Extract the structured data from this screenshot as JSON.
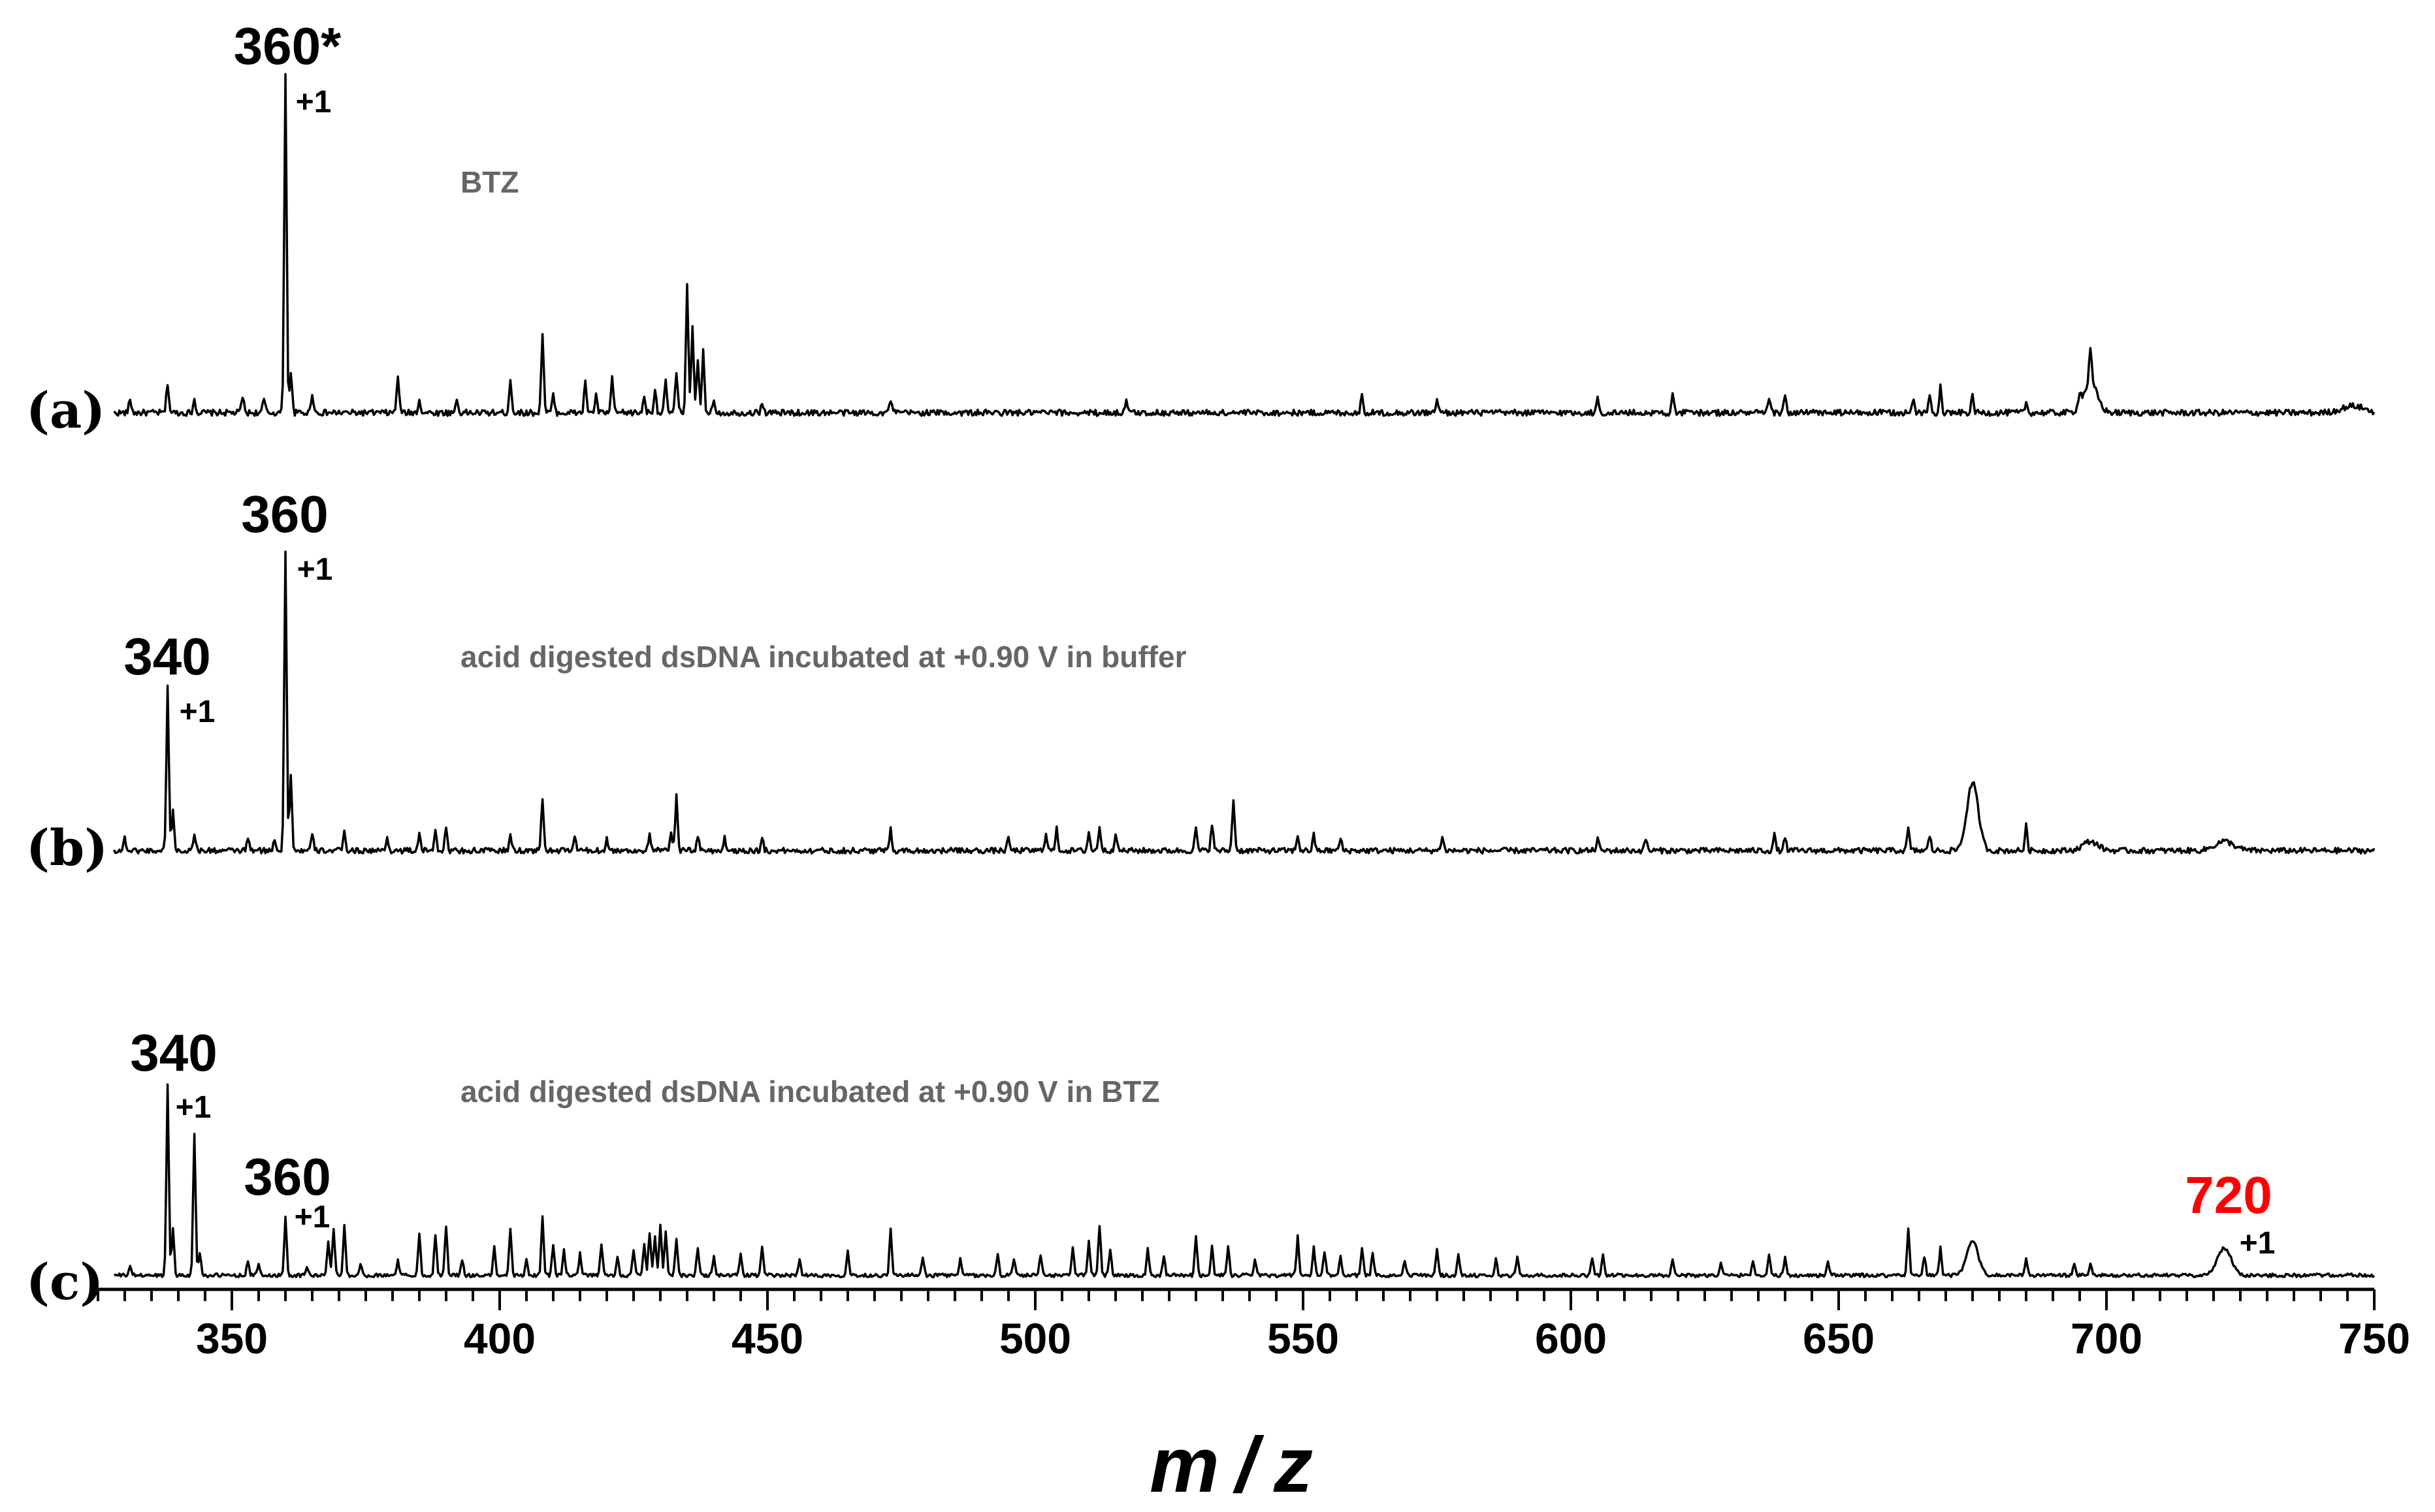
{
  "chart_data": {
    "type": "line",
    "x_axis": {
      "label_m": "m",
      "label_sep": "/",
      "label_z": "z",
      "xlim": [
        325,
        750
      ],
      "major_ticks": [
        350,
        400,
        450,
        500,
        550,
        600,
        650,
        700,
        750
      ],
      "tick_labels": [
        "350",
        "400",
        "450",
        "500",
        "550",
        "600",
        "650",
        "700",
        "750"
      ],
      "minor_tick_step": 5
    },
    "panels": [
      {
        "label": "(a)",
        "caption": "BTZ",
        "peaks": [
          [
            331,
            0.04
          ],
          [
            338,
            0.09
          ],
          [
            343,
            0.04
          ],
          [
            352,
            0.05
          ],
          [
            356,
            0.04
          ],
          [
            360,
            1.0
          ],
          [
            361,
            0.12
          ],
          [
            365,
            0.06
          ],
          [
            381,
            0.11
          ],
          [
            385,
            0.04
          ],
          [
            392,
            0.04
          ],
          [
            402,
            0.1
          ],
          [
            408,
            0.24
          ],
          [
            410,
            0.05
          ],
          [
            416,
            0.09
          ],
          [
            418,
            0.05
          ],
          [
            421,
            0.1
          ],
          [
            427,
            0.05
          ],
          [
            429,
            0.07
          ],
          [
            431,
            0.09
          ],
          [
            433,
            0.12
          ],
          [
            435,
            0.39
          ],
          [
            436,
            0.25
          ],
          [
            437,
            0.15
          ],
          [
            438,
            0.18
          ],
          [
            440,
            0.04
          ],
          [
            449,
            0.03
          ],
          [
            473,
            0.04
          ],
          [
            517,
            0.04
          ],
          [
            561,
            0.05
          ],
          [
            575,
            0.04
          ],
          [
            605,
            0.04
          ],
          [
            619,
            0.05
          ],
          [
            637,
            0.04
          ],
          [
            640,
            0.05
          ],
          [
            664,
            0.04
          ],
          [
            667,
            0.05
          ],
          [
            669,
            0.08
          ],
          [
            675,
            0.05
          ],
          [
            685,
            0.03
          ],
          [
            695,
            0.04
          ],
          [
            697,
            0.1
          ]
        ],
        "broad_peaks": [
          [
            697,
            0.09,
            1.8
          ],
          [
            746,
            0.02,
            3
          ]
        ],
        "annotations": [
          {
            "text": "360*",
            "x": 360,
            "charge": "+1",
            "color": "#000000"
          }
        ]
      },
      {
        "label": "(b)",
        "caption": "acid digested dsDNA incubated at +0.90 V in buffer",
        "peaks": [
          [
            330,
            0.04
          ],
          [
            338,
            0.54
          ],
          [
            339,
            0.13
          ],
          [
            343,
            0.06
          ],
          [
            353,
            0.04
          ],
          [
            358,
            0.04
          ],
          [
            360,
            0.98
          ],
          [
            361,
            0.24
          ],
          [
            365,
            0.05
          ],
          [
            371,
            0.06
          ],
          [
            379,
            0.04
          ],
          [
            385,
            0.05
          ],
          [
            388,
            0.07
          ],
          [
            390,
            0.07
          ],
          [
            402,
            0.05
          ],
          [
            408,
            0.17
          ],
          [
            414,
            0.05
          ],
          [
            420,
            0.04
          ],
          [
            428,
            0.05
          ],
          [
            432,
            0.06
          ],
          [
            433,
            0.18
          ],
          [
            437,
            0.05
          ],
          [
            442,
            0.04
          ],
          [
            449,
            0.04
          ],
          [
            473,
            0.07
          ],
          [
            495,
            0.04
          ],
          [
            502,
            0.06
          ],
          [
            504,
            0.07
          ],
          [
            510,
            0.06
          ],
          [
            512,
            0.08
          ],
          [
            515,
            0.06
          ],
          [
            530,
            0.07
          ],
          [
            533,
            0.09
          ],
          [
            537,
            0.17
          ],
          [
            549,
            0.05
          ],
          [
            552,
            0.05
          ],
          [
            557,
            0.04
          ],
          [
            576,
            0.05
          ],
          [
            605,
            0.04
          ],
          [
            614,
            0.04
          ],
          [
            638,
            0.05
          ],
          [
            640,
            0.04
          ],
          [
            663,
            0.07
          ],
          [
            667,
            0.05
          ],
          [
            685,
            0.08
          ]
        ],
        "broad_peaks": [
          [
            675,
            0.22,
            1.5
          ],
          [
            697,
            0.03,
            2
          ],
          [
            722,
            0.03,
            2.5
          ]
        ],
        "annotations": [
          {
            "text": "340",
            "x": 338,
            "charge": "+1",
            "color": "#000000"
          },
          {
            "text": "360",
            "x": 360,
            "charge": "+1",
            "color": "#000000"
          }
        ]
      },
      {
        "label": "(c)",
        "caption": "acid digested dsDNA incubated at +0.90 V in BTZ",
        "peaks": [
          [
            331,
            0.05
          ],
          [
            338,
            0.98
          ],
          [
            339,
            0.24
          ],
          [
            343,
            0.72
          ],
          [
            344,
            0.12
          ],
          [
            353,
            0.07
          ],
          [
            355,
            0.06
          ],
          [
            360,
            0.3
          ],
          [
            364,
            0.05
          ],
          [
            368,
            0.18
          ],
          [
            369,
            0.24
          ],
          [
            371,
            0.26
          ],
          [
            374,
            0.06
          ],
          [
            381,
            0.08
          ],
          [
            385,
            0.21
          ],
          [
            388,
            0.21
          ],
          [
            390,
            0.25
          ],
          [
            393,
            0.08
          ],
          [
            399,
            0.14
          ],
          [
            402,
            0.24
          ],
          [
            405,
            0.08
          ],
          [
            408,
            0.3
          ],
          [
            410,
            0.15
          ],
          [
            412,
            0.13
          ],
          [
            415,
            0.11
          ],
          [
            419,
            0.16
          ],
          [
            422,
            0.09
          ],
          [
            425,
            0.13
          ],
          [
            427,
            0.16
          ],
          [
            428,
            0.22
          ],
          [
            429,
            0.2
          ],
          [
            430,
            0.26
          ],
          [
            431,
            0.23
          ],
          [
            433,
            0.19
          ],
          [
            437,
            0.14
          ],
          [
            440,
            0.1
          ],
          [
            445,
            0.11
          ],
          [
            449,
            0.15
          ],
          [
            456,
            0.09
          ],
          [
            465,
            0.13
          ],
          [
            473,
            0.24
          ],
          [
            479,
            0.09
          ],
          [
            486,
            0.08
          ],
          [
            493,
            0.11
          ],
          [
            496,
            0.09
          ],
          [
            501,
            0.1
          ],
          [
            507,
            0.15
          ],
          [
            510,
            0.18
          ],
          [
            512,
            0.26
          ],
          [
            514,
            0.14
          ],
          [
            521,
            0.14
          ],
          [
            524,
            0.1
          ],
          [
            530,
            0.2
          ],
          [
            533,
            0.15
          ],
          [
            536,
            0.15
          ],
          [
            541,
            0.08
          ],
          [
            549,
            0.2
          ],
          [
            552,
            0.14
          ],
          [
            554,
            0.12
          ],
          [
            557,
            0.1
          ],
          [
            561,
            0.14
          ],
          [
            563,
            0.12
          ],
          [
            569,
            0.08
          ],
          [
            575,
            0.14
          ],
          [
            579,
            0.1
          ],
          [
            586,
            0.08
          ],
          [
            590,
            0.09
          ],
          [
            604,
            0.09
          ],
          [
            606,
            0.1
          ],
          [
            619,
            0.09
          ],
          [
            628,
            0.06
          ],
          [
            634,
            0.08
          ],
          [
            637,
            0.1
          ],
          [
            640,
            0.09
          ],
          [
            648,
            0.07
          ],
          [
            663,
            0.24
          ],
          [
            666,
            0.1
          ],
          [
            669,
            0.14
          ],
          [
            685,
            0.09
          ],
          [
            694,
            0.06
          ],
          [
            697,
            0.06
          ]
        ],
        "broad_peaks": [
          [
            675,
            0.17,
            1.5
          ],
          [
            722,
            0.14,
            1.8
          ]
        ],
        "annotations": [
          {
            "text": "340",
            "x": 338,
            "charge": "+1",
            "color": "#000000"
          },
          {
            "text": "360",
            "x": 360,
            "charge": "+1",
            "color": "#000000"
          },
          {
            "text": "720",
            "x": 722,
            "charge": "+1",
            "color": "#ff0000"
          }
        ]
      }
    ]
  }
}
